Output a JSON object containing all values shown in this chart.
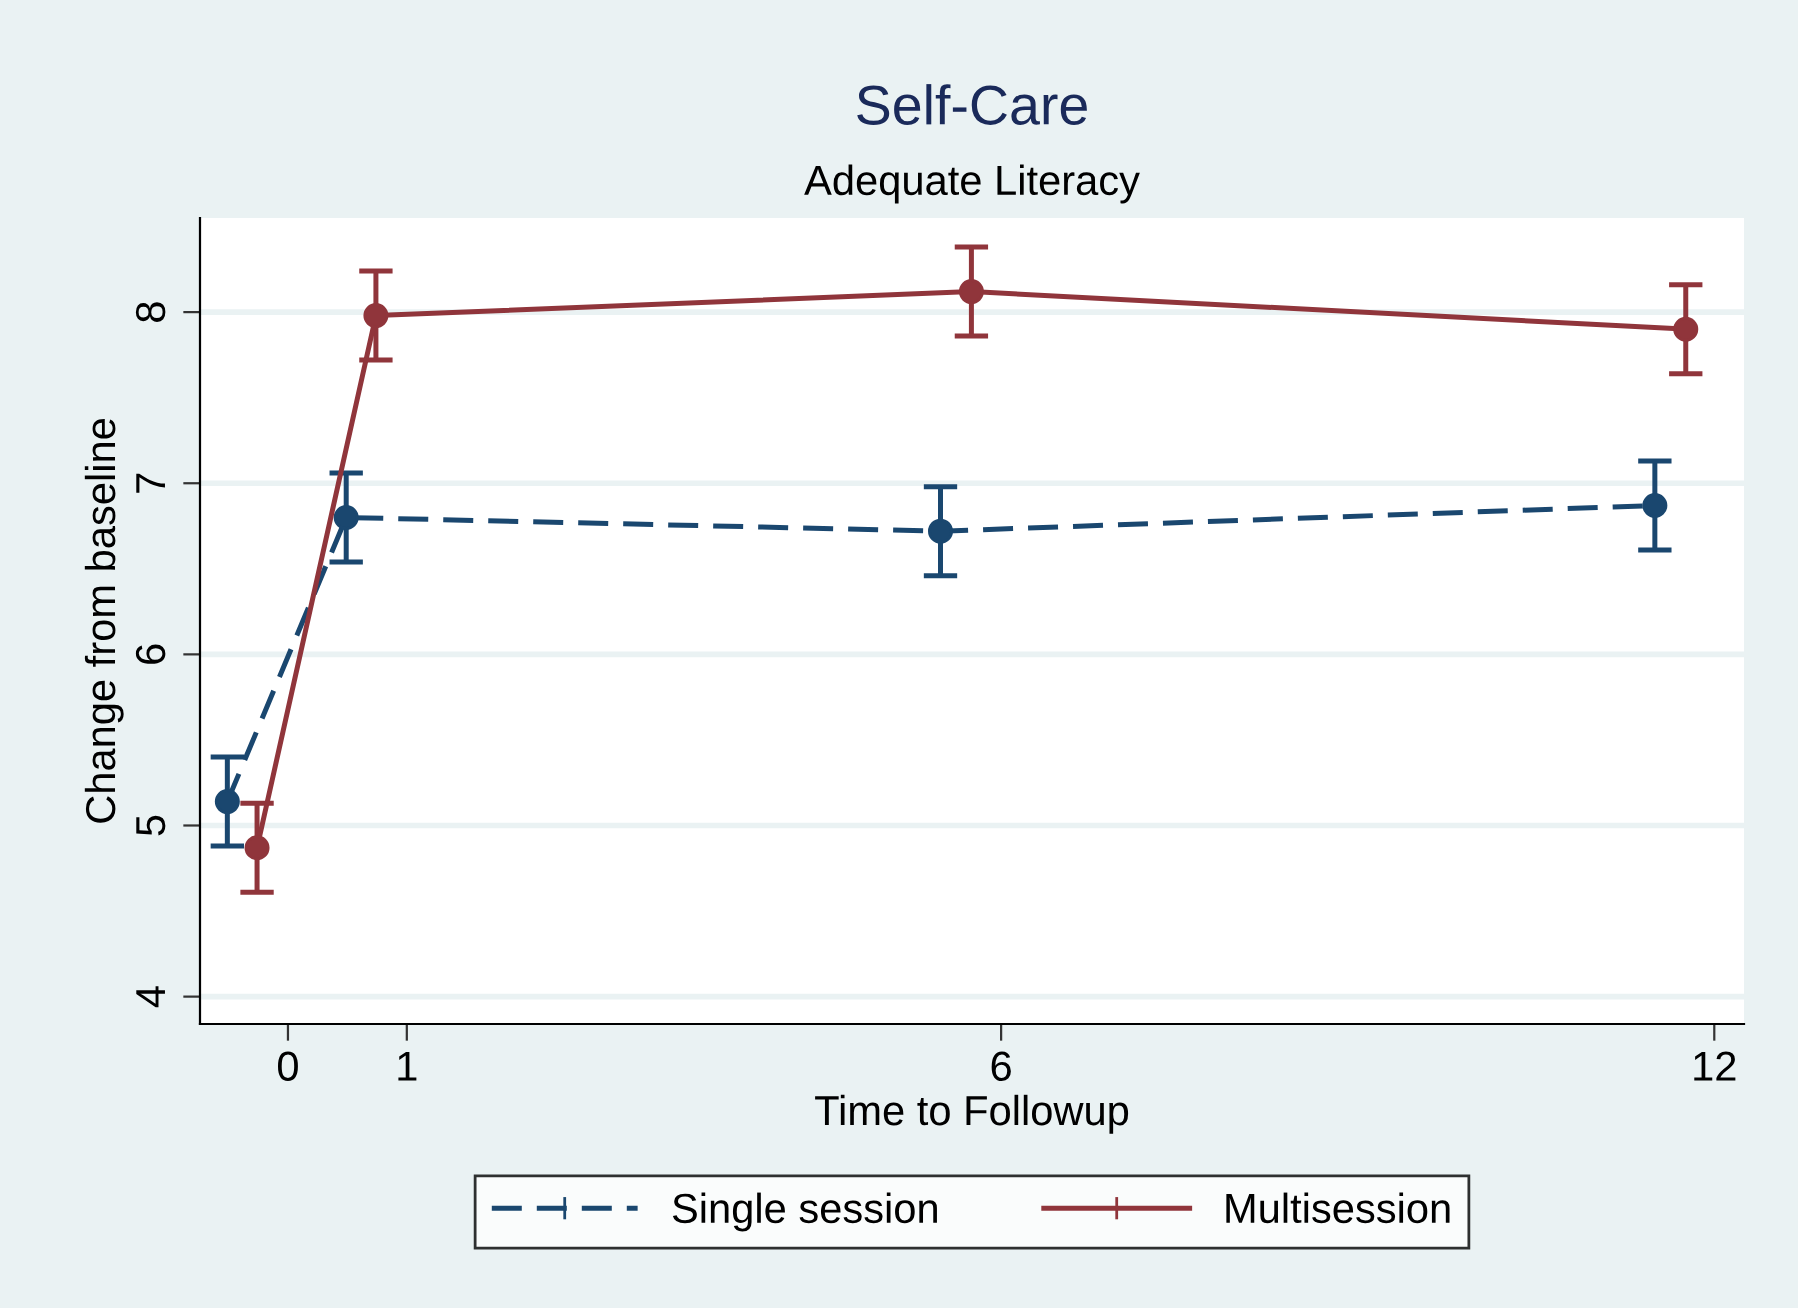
{
  "chart_data": {
    "type": "line",
    "title": "Self-Care",
    "subtitle": "Adequate Literacy",
    "xlabel": "Time to Followup",
    "ylabel": "Change from baseline",
    "xlim": [
      -0.74,
      12.25
    ],
    "xticks": [
      0,
      1,
      6,
      12
    ],
    "ylim": [
      3.84,
      8.55
    ],
    "yticks": [
      4,
      5,
      6,
      7,
      8
    ],
    "grid": "y",
    "legend": "bottom",
    "marker": "circle",
    "series": [
      {
        "name": "Single session",
        "color": "#1a476f",
        "line_style": "dashed",
        "x": [
          -0.51,
          0.49,
          5.49,
          11.5
        ],
        "values": [
          5.14,
          6.8,
          6.72,
          6.87
        ],
        "errors": [
          0.26,
          0.26,
          0.26,
          0.26
        ]
      },
      {
        "name": "Multisession",
        "color": "#90353b",
        "line_style": "solid",
        "x": [
          -0.26,
          0.74,
          5.75,
          11.76
        ],
        "values": [
          4.87,
          7.98,
          8.12,
          7.9
        ],
        "errors": [
          0.26,
          0.26,
          0.26,
          0.26
        ]
      }
    ]
  }
}
